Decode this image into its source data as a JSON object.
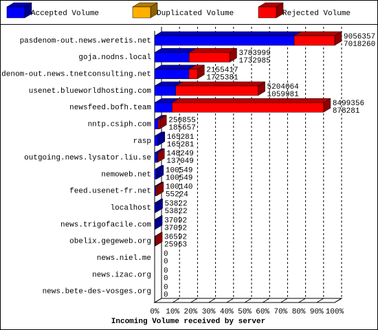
{
  "chart_data": {
    "type": "stacked-bar-3d",
    "title": "Incoming Volume received by server",
    "categories": [
      "pasdenom-out.news.weretis.net",
      "goja.nodns.local",
      "pasdenom-out.news.tnetconsulting.net",
      "usenet.blueworldhosting.com",
      "newsfeed.bofh.team",
      "nntp.csiph.com",
      "rasp",
      "outgoing.news.lysator.liu.se",
      "nemoweb.net",
      "feed.usenet-fr.net",
      "localhost",
      "news.trigofacile.com",
      "obelix.gegeweb.org",
      "news.niel.me",
      "news.izac.org",
      "news.bete-des-vosges.org"
    ],
    "series": [
      {
        "name": "Accepted Volume",
        "color": "#0000ff",
        "values": [
          7018260,
          1732985,
          1725381,
          1059981,
          878281,
          185657,
          165281,
          137049,
          100549,
          55224,
          53822,
          37092,
          25963,
          0,
          0,
          0
        ]
      },
      {
        "name": "Duplicated Volume",
        "color": "#ffb000",
        "values": [
          0,
          0,
          0,
          0,
          0,
          0,
          0,
          0,
          0,
          0,
          0,
          0,
          0,
          0,
          0,
          0
        ]
      },
      {
        "name": "Rejected Volume",
        "color": "#ff0000",
        "values": [
          2038097,
          2051014,
          430036,
          4144083,
          7621075,
          65198,
          0,
          11200,
          0,
          44916,
          0,
          0,
          10629,
          0,
          0,
          0
        ]
      }
    ],
    "totals": [
      9056357,
      3783999,
      2155417,
      5204064,
      8499356,
      250855,
      165281,
      148249,
      100549,
      100140,
      53822,
      37092,
      36592,
      0,
      0,
      0
    ],
    "xlim": [
      0,
      9056357
    ],
    "xticks": [
      {
        "value": 0,
        "label": "0%"
      },
      {
        "value": 905635.7,
        "label": "10%"
      },
      {
        "value": 1811271.4,
        "label": "20%"
      },
      {
        "value": 2716907.1,
        "label": "30%"
      },
      {
        "value": 3622542.8,
        "label": "40%"
      },
      {
        "value": 4528178.5,
        "label": "50%"
      },
      {
        "value": 5433814.2,
        "label": "60%"
      },
      {
        "value": 6339449.9,
        "label": "70%"
      },
      {
        "value": 7245085.6,
        "label": "80%"
      },
      {
        "value": 8150721.3,
        "label": "90%"
      },
      {
        "value": 9056357,
        "label": "100%"
      }
    ],
    "grid": true
  }
}
